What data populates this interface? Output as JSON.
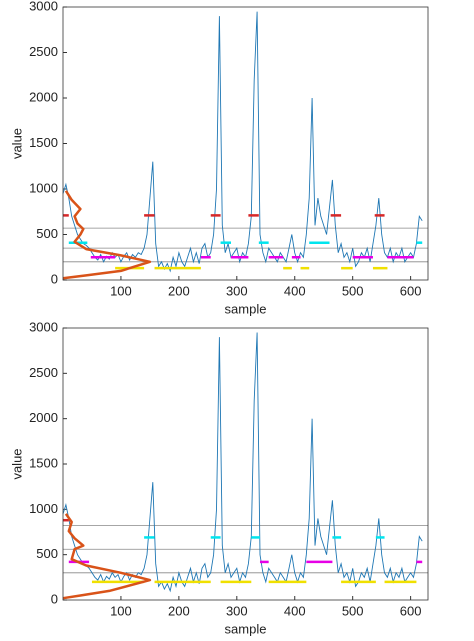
{
  "chart_data": [
    {
      "type": "line",
      "xlabel": "sample",
      "ylabel": "value",
      "xlim": [
        0,
        630
      ],
      "ylim": [
        0,
        3000
      ],
      "xticks": [
        100,
        200,
        300,
        400,
        500,
        600
      ],
      "yticks": [
        0,
        500,
        1000,
        1500,
        2000,
        2500,
        3000
      ],
      "thresholds": {
        "color": "#888888",
        "values": [
          200,
          350,
          570
        ]
      },
      "series": [
        {
          "color": "#1f77b4",
          "x": [
            0,
            5,
            10,
            15,
            20,
            25,
            30,
            35,
            40,
            45,
            50,
            55,
            60,
            65,
            70,
            75,
            80,
            85,
            90,
            95,
            100,
            105,
            110,
            115,
            120,
            125,
            130,
            135,
            140,
            145,
            150,
            155,
            160,
            165,
            170,
            175,
            180,
            185,
            190,
            195,
            200,
            205,
            210,
            215,
            220,
            225,
            230,
            235,
            240,
            245,
            250,
            255,
            260,
            265,
            270,
            275,
            280,
            285,
            290,
            295,
            300,
            305,
            310,
            315,
            320,
            325,
            330,
            335,
            340,
            345,
            350,
            355,
            360,
            365,
            370,
            375,
            380,
            385,
            390,
            395,
            400,
            405,
            410,
            415,
            420,
            425,
            430,
            435,
            440,
            445,
            450,
            455,
            460,
            465,
            470,
            475,
            480,
            485,
            490,
            495,
            500,
            505,
            510,
            515,
            520,
            525,
            530,
            535,
            540,
            545,
            550,
            555,
            560,
            565,
            570,
            575,
            580,
            585,
            590,
            595,
            600,
            605,
            610,
            615,
            620
          ],
          "values": [
            950,
            1050,
            900,
            700,
            600,
            500,
            450,
            400,
            380,
            350,
            300,
            250,
            220,
            280,
            200,
            260,
            230,
            300,
            250,
            280,
            200,
            260,
            300,
            220,
            280,
            250,
            300,
            280,
            350,
            500,
            900,
            1300,
            400,
            150,
            200,
            120,
            180,
            100,
            250,
            150,
            300,
            200,
            150,
            250,
            350,
            200,
            300,
            180,
            350,
            400,
            250,
            300,
            500,
            1000,
            2900,
            600,
            300,
            400,
            250,
            300,
            350,
            200,
            300,
            250,
            400,
            700,
            2200,
            2950,
            500,
            300,
            200,
            350,
            300,
            250,
            200,
            300,
            250,
            200,
            350,
            500,
            300,
            200,
            300,
            250,
            500,
            900,
            2000,
            600,
            900,
            700,
            600,
            500,
            800,
            1100,
            600,
            300,
            400,
            250,
            300,
            200,
            350,
            150,
            200,
            300,
            250,
            350,
            200,
            400,
            600,
            900,
            500,
            300,
            250,
            350,
            200,
            300,
            250,
            350,
            200,
            250,
            300,
            250,
            400,
            700,
            650
          ]
        }
      ],
      "levels": [
        {
          "color": "#d62728",
          "segments": [
            [
              0,
              10,
              710
            ],
            [
              140,
              158,
              710
            ],
            [
              255,
              272,
              710
            ],
            [
              320,
              338,
              710
            ],
            [
              462,
              480,
              710
            ],
            [
              538,
              555,
              710
            ]
          ]
        },
        {
          "color": "#00e5ee",
          "segments": [
            [
              10,
              42,
              410
            ],
            [
              272,
              290,
              410
            ],
            [
              338,
              355,
              410
            ],
            [
              425,
              460,
              410
            ],
            [
              610,
              620,
              410
            ]
          ]
        },
        {
          "color": "#e600e6",
          "segments": [
            [
              48,
              90,
              250
            ],
            [
              238,
              255,
              250
            ],
            [
              290,
              320,
              250
            ],
            [
              355,
              380,
              250
            ],
            [
              395,
              410,
              250
            ],
            [
              500,
              535,
              250
            ],
            [
              560,
              605,
              250
            ]
          ]
        },
        {
          "color": "#f0e000",
          "segments": [
            [
              90,
              140,
              130
            ],
            [
              158,
              238,
              130
            ],
            [
              380,
              395,
              130
            ],
            [
              410,
              425,
              130
            ],
            [
              480,
              500,
              130
            ],
            [
              535,
              560,
              130
            ]
          ]
        }
      ],
      "mixture": {
        "color": "#d95319",
        "x": [
          0,
          40,
          100,
          150,
          100,
          40,
          20,
          30,
          35,
          25,
          20,
          30,
          15,
          5
        ],
        "y": [
          20,
          50,
          100,
          200,
          270,
          340,
          420,
          500,
          560,
          620,
          700,
          780,
          880,
          980
        ]
      }
    },
    {
      "type": "line",
      "xlabel": "sample",
      "ylabel": "value",
      "xlim": [
        0,
        630
      ],
      "ylim": [
        0,
        3000
      ],
      "xticks": [
        100,
        200,
        300,
        400,
        500,
        600
      ],
      "yticks": [
        0,
        500,
        1000,
        1500,
        2000,
        2500,
        3000
      ],
      "thresholds": {
        "color": "#888888",
        "values": [
          300,
          560,
          820
        ]
      },
      "series": [
        {
          "color": "#1f77b4",
          "x": [
            0,
            5,
            10,
            15,
            20,
            25,
            30,
            35,
            40,
            45,
            50,
            55,
            60,
            65,
            70,
            75,
            80,
            85,
            90,
            95,
            100,
            105,
            110,
            115,
            120,
            125,
            130,
            135,
            140,
            145,
            150,
            155,
            160,
            165,
            170,
            175,
            180,
            185,
            190,
            195,
            200,
            205,
            210,
            215,
            220,
            225,
            230,
            235,
            240,
            245,
            250,
            255,
            260,
            265,
            270,
            275,
            280,
            285,
            290,
            295,
            300,
            305,
            310,
            315,
            320,
            325,
            330,
            335,
            340,
            345,
            350,
            355,
            360,
            365,
            370,
            375,
            380,
            385,
            390,
            395,
            400,
            405,
            410,
            415,
            420,
            425,
            430,
            435,
            440,
            445,
            450,
            455,
            460,
            465,
            470,
            475,
            480,
            485,
            490,
            495,
            500,
            505,
            510,
            515,
            520,
            525,
            530,
            535,
            540,
            545,
            550,
            555,
            560,
            565,
            570,
            575,
            580,
            585,
            590,
            595,
            600,
            605,
            610,
            615,
            620
          ],
          "values": [
            950,
            1050,
            900,
            700,
            600,
            500,
            450,
            400,
            380,
            350,
            300,
            250,
            220,
            280,
            200,
            260,
            230,
            300,
            250,
            280,
            200,
            260,
            300,
            220,
            280,
            250,
            300,
            280,
            350,
            500,
            900,
            1300,
            400,
            150,
            200,
            120,
            180,
            100,
            250,
            150,
            300,
            200,
            150,
            250,
            350,
            200,
            300,
            180,
            350,
            400,
            250,
            300,
            500,
            1000,
            2900,
            600,
            300,
            400,
            250,
            300,
            350,
            200,
            300,
            250,
            400,
            700,
            2200,
            2950,
            500,
            300,
            200,
            350,
            300,
            250,
            200,
            300,
            250,
            200,
            350,
            500,
            300,
            200,
            300,
            250,
            500,
            900,
            2000,
            600,
            900,
            700,
            600,
            500,
            800,
            1100,
            600,
            300,
            400,
            250,
            300,
            200,
            350,
            150,
            200,
            300,
            250,
            350,
            200,
            400,
            600,
            900,
            500,
            300,
            250,
            350,
            200,
            300,
            250,
            350,
            200,
            250,
            300,
            250,
            400,
            700,
            650
          ]
        }
      ],
      "levels": [
        {
          "color": "#d62728",
          "segments": [
            [
              0,
              10,
              880
            ]
          ]
        },
        {
          "color": "#00e5ee",
          "segments": [
            [
              140,
              158,
              690
            ],
            [
              255,
              272,
              690
            ],
            [
              325,
              340,
              690
            ],
            [
              465,
              480,
              690
            ],
            [
              540,
              555,
              690
            ]
          ]
        },
        {
          "color": "#e600e6",
          "segments": [
            [
              10,
              45,
              420
            ],
            [
              340,
              355,
              420
            ],
            [
              420,
              465,
              420
            ],
            [
              610,
              620,
              420
            ]
          ]
        },
        {
          "color": "#f0e000",
          "segments": [
            [
              50,
              140,
              200
            ],
            [
              158,
              255,
              200
            ],
            [
              272,
              325,
              200
            ],
            [
              355,
              420,
              200
            ],
            [
              480,
              540,
              200
            ],
            [
              555,
              610,
              200
            ]
          ]
        }
      ],
      "mixture": {
        "color": "#d95319",
        "x": [
          0,
          30,
          80,
          150,
          100,
          40,
          15,
          20,
          35,
          20,
          10,
          15,
          5
        ],
        "y": [
          20,
          50,
          100,
          220,
          300,
          380,
          450,
          560,
          600,
          680,
          760,
          860,
          950
        ]
      }
    }
  ]
}
